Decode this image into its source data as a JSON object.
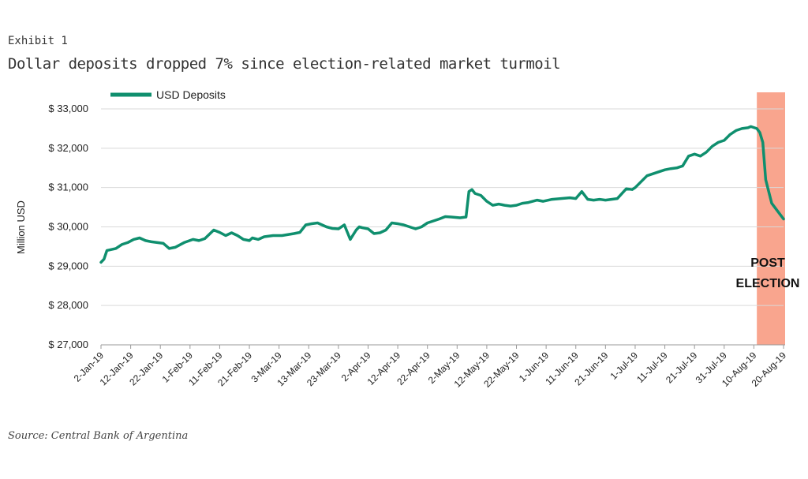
{
  "exhibit_label": "Exhibit 1",
  "title": "Dollar deposits dropped 7% since election-related market turmoil",
  "source": "Source: Central Bank of Argentina",
  "colors": {
    "series": "#0f8f6e",
    "highlight": "#f9a58e",
    "grid": "#d9d9d9"
  },
  "chart_data": {
    "type": "line",
    "title": "Dollar deposits dropped 7% since election-related market turmoil",
    "xlabel": "",
    "ylabel": "Million USD",
    "ylim": [
      27000,
      33000
    ],
    "yticks": [
      27000,
      28000,
      29000,
      30000,
      31000,
      32000,
      33000
    ],
    "ytick_labels": [
      "$ 27,000",
      "$ 28,000",
      "$ 29,000",
      "$ 30,000",
      "$ 31,000",
      "$ 32,000",
      "$ 33,000"
    ],
    "xlim": [
      "2019-01-02",
      "2019-08-20"
    ],
    "xticks": [
      "2019-01-02",
      "2019-01-12",
      "2019-01-22",
      "2019-02-01",
      "2019-02-11",
      "2019-02-21",
      "2019-03-03",
      "2019-03-13",
      "2019-03-23",
      "2019-04-02",
      "2019-04-12",
      "2019-04-22",
      "2019-05-02",
      "2019-05-12",
      "2019-05-22",
      "2019-06-01",
      "2019-06-11",
      "2019-06-21",
      "2019-07-01",
      "2019-07-11",
      "2019-07-21",
      "2019-07-31",
      "2019-08-10",
      "2019-08-20"
    ],
    "xtick_labels": [
      "2-Jan-19",
      "12-Jan-19",
      "22-Jan-19",
      "1-Feb-19",
      "11-Feb-19",
      "21-Feb-19",
      "3-Mar-19",
      "13-Mar-19",
      "23-Mar-19",
      "2-Apr-19",
      "12-Apr-19",
      "22-Apr-19",
      "2-May-19",
      "12-May-19",
      "22-May-19",
      "1-Jun-19",
      "11-Jun-19",
      "21-Jun-19",
      "1-Jul-19",
      "11-Jul-19",
      "21-Jul-19",
      "31-Jul-19",
      "10-Aug-19",
      "20-Aug-19"
    ],
    "grid": true,
    "legend_position": "top-left",
    "series": [
      {
        "name": "USD Deposits",
        "x": [
          "2019-01-02",
          "2019-01-03",
          "2019-01-04",
          "2019-01-07",
          "2019-01-09",
          "2019-01-11",
          "2019-01-13",
          "2019-01-15",
          "2019-01-17",
          "2019-01-19",
          "2019-01-21",
          "2019-01-23",
          "2019-01-25",
          "2019-01-27",
          "2019-01-28",
          "2019-01-30",
          "2019-02-02",
          "2019-02-04",
          "2019-02-06",
          "2019-02-09",
          "2019-02-11",
          "2019-02-13",
          "2019-02-15",
          "2019-02-17",
          "2019-02-19",
          "2019-02-21",
          "2019-02-22",
          "2019-02-24",
          "2019-02-26",
          "2019-03-01",
          "2019-03-04",
          "2019-03-08",
          "2019-03-10",
          "2019-03-12",
          "2019-03-14",
          "2019-03-16",
          "2019-03-19",
          "2019-03-21",
          "2019-03-23",
          "2019-03-25",
          "2019-03-27",
          "2019-03-29",
          "2019-03-30",
          "2019-03-31",
          "2019-04-02",
          "2019-04-04",
          "2019-04-06",
          "2019-04-08",
          "2019-04-10",
          "2019-04-12",
          "2019-04-14",
          "2019-04-16",
          "2019-04-18",
          "2019-04-20",
          "2019-04-22",
          "2019-04-24",
          "2019-04-26",
          "2019-04-28",
          "2019-04-30",
          "2019-05-03",
          "2019-05-05",
          "2019-05-06",
          "2019-05-07",
          "2019-05-08",
          "2019-05-10",
          "2019-05-12",
          "2019-05-14",
          "2019-05-16",
          "2019-05-18",
          "2019-05-20",
          "2019-05-22",
          "2019-05-24",
          "2019-05-26",
          "2019-05-29",
          "2019-05-31",
          "2019-06-03",
          "2019-06-06",
          "2019-06-09",
          "2019-06-11",
          "2019-06-13",
          "2019-06-15",
          "2019-06-17",
          "2019-06-19",
          "2019-06-21",
          "2019-06-23",
          "2019-06-25",
          "2019-06-28",
          "2019-06-30",
          "2019-07-01",
          "2019-07-03",
          "2019-07-05",
          "2019-07-07",
          "2019-07-09",
          "2019-07-11",
          "2019-07-13",
          "2019-07-15",
          "2019-07-17",
          "2019-07-19",
          "2019-07-21",
          "2019-07-23",
          "2019-07-25",
          "2019-07-27",
          "2019-07-29",
          "2019-07-31",
          "2019-08-02",
          "2019-08-04",
          "2019-08-06",
          "2019-08-08",
          "2019-08-09",
          "2019-08-11",
          "2019-08-12",
          "2019-08-13",
          "2019-08-14",
          "2019-08-16",
          "2019-08-18",
          "2019-08-20"
        ],
        "y": [
          29100,
          29180,
          29400,
          29450,
          29550,
          29600,
          29680,
          29720,
          29650,
          29620,
          29600,
          29580,
          29450,
          29480,
          29520,
          29600,
          29680,
          29650,
          29700,
          29920,
          29860,
          29780,
          29850,
          29780,
          29680,
          29650,
          29720,
          29680,
          29750,
          29780,
          29780,
          29830,
          29860,
          30050,
          30080,
          30100,
          30000,
          29960,
          29950,
          30050,
          29680,
          29920,
          30000,
          29980,
          29950,
          29830,
          29850,
          29920,
          30100,
          30080,
          30050,
          30000,
          29950,
          30000,
          30100,
          30150,
          30200,
          30260,
          30250,
          30230,
          30250,
          30900,
          30950,
          30850,
          30800,
          30650,
          30550,
          30580,
          30550,
          30530,
          30550,
          30600,
          30620,
          30680,
          30650,
          30700,
          30720,
          30740,
          30720,
          30900,
          30700,
          30680,
          30700,
          30680,
          30700,
          30720,
          30970,
          30950,
          31000,
          31150,
          31300,
          31350,
          31400,
          31450,
          31480,
          31500,
          31550,
          31800,
          31850,
          31800,
          31900,
          32050,
          32150,
          32200,
          32350,
          32450,
          32500,
          32520,
          32550,
          32500,
          32400,
          32150,
          31200,
          30600,
          30400,
          30200
        ]
      }
    ],
    "highlight_region": {
      "x_start": "2019-08-11",
      "x_end": "2019-08-20"
    },
    "annotation": [
      "POST",
      "ELECTION"
    ]
  }
}
